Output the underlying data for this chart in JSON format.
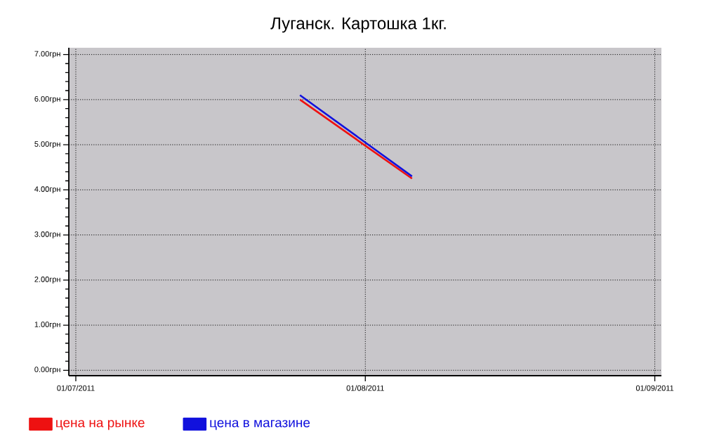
{
  "chart_data": {
    "type": "line",
    "title": "Луганск. Картошка 1кг.",
    "x": [
      "2011-07-25",
      "2011-08-06"
    ],
    "series": [
      {
        "name": "цена на рынке",
        "color": "#ee1111",
        "values": [
          6.0,
          4.25
        ]
      },
      {
        "name": "цена в магазине",
        "color": "#1111dd",
        "values": [
          6.1,
          4.3
        ]
      }
    ],
    "xlim": [
      "2011-06-30T06:00",
      "2011-09-01T17:00"
    ],
    "xticks": [
      {
        "value": "2011-07-01",
        "label": "01/07/2011"
      },
      {
        "value": "2011-08-01",
        "label": "01/08/2011"
      },
      {
        "value": "2011-09-01",
        "label": "01/09/2011"
      }
    ],
    "ylim": [
      -0.12,
      7.15
    ],
    "yticks": [
      {
        "value": 0,
        "label": "0.00грн"
      },
      {
        "value": 1,
        "label": "1.00грн"
      },
      {
        "value": 2,
        "label": "2.00грн"
      },
      {
        "value": 3,
        "label": "3.00грн"
      },
      {
        "value": 4,
        "label": "4.00грн"
      },
      {
        "value": 5,
        "label": "5.00грн"
      },
      {
        "value": 6,
        "label": "6.00грн"
      },
      {
        "value": 7,
        "label": "7.00грн"
      }
    ],
    "grid": true,
    "legend": "bottom left",
    "line_style": "solid"
  }
}
